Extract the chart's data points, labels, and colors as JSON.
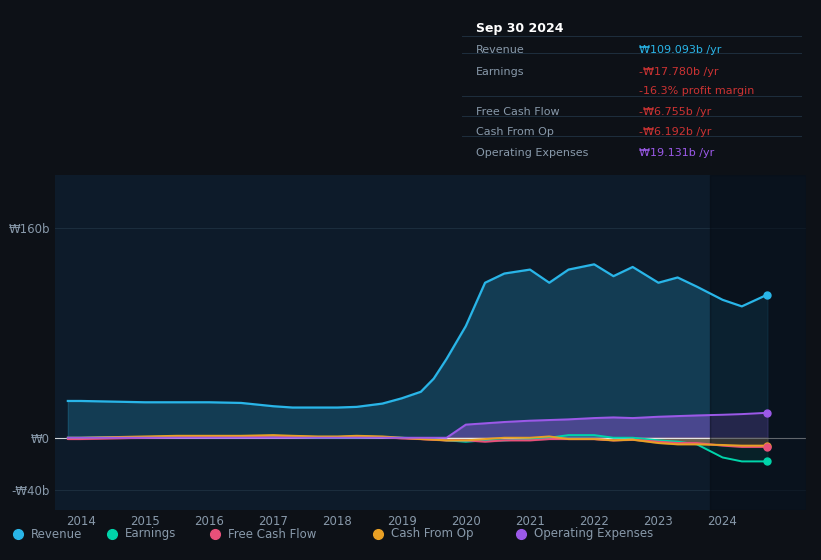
{
  "bg_color": "#0d1117",
  "plot_bg_color": "#0d1b2a",
  "grid_color": "#1e3040",
  "text_color": "#8899aa",
  "white_color": "#ffffff",
  "years": [
    2013.8,
    2014,
    2014.5,
    2015,
    2015.5,
    2016,
    2016.5,
    2017,
    2017.3,
    2017.7,
    2018,
    2018.3,
    2018.7,
    2019,
    2019.3,
    2019.5,
    2019.7,
    2020,
    2020.3,
    2020.6,
    2021,
    2021.3,
    2021.6,
    2022,
    2022.3,
    2022.6,
    2023,
    2023.3,
    2023.6,
    2024,
    2024.3,
    2024.7
  ],
  "revenue": [
    28,
    28,
    27.5,
    27,
    27,
    27,
    26.5,
    24,
    23,
    23,
    23,
    23.5,
    26,
    30,
    35,
    45,
    60,
    85,
    118,
    125,
    128,
    118,
    128,
    132,
    123,
    130,
    118,
    122,
    115,
    105,
    100,
    109
  ],
  "earnings": [
    0,
    0,
    0.5,
    0.5,
    1,
    0.5,
    0.5,
    1,
    0.5,
    0,
    0,
    0,
    0.5,
    0,
    -0.5,
    -1,
    -2,
    -3,
    -2,
    -2,
    -1,
    0,
    2,
    2,
    0,
    0,
    -2,
    -3,
    -5,
    -15,
    -18,
    -18
  ],
  "fcf": [
    -1,
    -1,
    -0.5,
    0,
    0.5,
    1,
    1,
    1.5,
    1,
    0.5,
    0.5,
    1,
    0.5,
    -0.5,
    -1,
    -1.5,
    -2,
    -2,
    -3,
    -2,
    -2,
    -1,
    -1,
    -1,
    -2,
    -1.5,
    -3,
    -4,
    -4,
    -6,
    -7,
    -7
  ],
  "cash_from_op": [
    0,
    0,
    0.5,
    1,
    1.5,
    1.5,
    1.5,
    2,
    1.5,
    1,
    1,
    1.5,
    1,
    0,
    -1,
    -1.5,
    -2,
    -2,
    -1,
    0,
    0,
    1,
    -1,
    -1,
    -2,
    -1.5,
    -4,
    -5,
    -5,
    -5.5,
    -6,
    -6
  ],
  "op_expenses": [
    0,
    0,
    0,
    0,
    0,
    0,
    0,
    0,
    0,
    0,
    0,
    0,
    0,
    0,
    0,
    0,
    0,
    10,
    11,
    12,
    13,
    13.5,
    14,
    15,
    15.5,
    15,
    16,
    16.5,
    17,
    17.5,
    18,
    19
  ],
  "revenue_color": "#29b5e8",
  "earnings_color": "#00d4aa",
  "fcf_color": "#e8507a",
  "cash_from_op_color": "#e8a025",
  "op_expenses_color": "#9b59e8",
  "ylim": [
    -55,
    200
  ],
  "yticks": [
    -40,
    0,
    160
  ],
  "ytick_labels": [
    "-₩40b",
    "₩0",
    "₩160b"
  ],
  "xticks": [
    2014,
    2015,
    2016,
    2017,
    2018,
    2019,
    2020,
    2021,
    2022,
    2023,
    2024
  ],
  "tooltip_title": "Sep 30 2024",
  "tooltip_rows": [
    {
      "label": "Revenue",
      "value": "₩109.093b /yr",
      "value_color": "#29b5e8"
    },
    {
      "label": "Earnings",
      "value": "-₩17.780b /yr",
      "value_color": "#cc3333"
    },
    {
      "label": "",
      "value": "-16.3% profit margin",
      "value_color": "#cc3333"
    },
    {
      "label": "Free Cash Flow",
      "value": "-₩6.755b /yr",
      "value_color": "#cc3333"
    },
    {
      "label": "Cash From Op",
      "value": "-₩6.192b /yr",
      "value_color": "#cc3333"
    },
    {
      "label": "Operating Expenses",
      "value": "₩19.131b /yr",
      "value_color": "#9b59e8"
    }
  ],
  "legend_items": [
    {
      "color": "#29b5e8",
      "label": "Revenue"
    },
    {
      "color": "#00d4aa",
      "label": "Earnings"
    },
    {
      "color": "#e8507a",
      "label": "Free Cash Flow"
    },
    {
      "color": "#e8a025",
      "label": "Cash From Op"
    },
    {
      "color": "#9b59e8",
      "label": "Operating Expenses"
    }
  ]
}
